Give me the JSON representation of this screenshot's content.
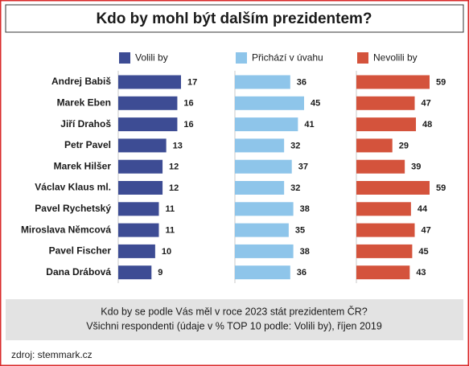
{
  "chart_data": {
    "type": "bar",
    "title": "Kdo by mohl být dalším prezidentem?",
    "categories": [
      "Andrej Babiš",
      "Marek Eben",
      "Jiří Drahoš",
      "Petr Pavel",
      "Marek Hilšer",
      "Václav Klaus ml.",
      "Pavel Rychetský",
      "Miroslava Němcová",
      "Pavel Fischer",
      "Dana Drábová"
    ],
    "series": [
      {
        "name": "Volili by",
        "color": "#3d4c94",
        "values": [
          17,
          16,
          16,
          13,
          12,
          12,
          11,
          11,
          10,
          9
        ]
      },
      {
        "name": "Přichází v úvahu",
        "color": "#8ec5ea",
        "values": [
          36,
          45,
          41,
          32,
          37,
          32,
          38,
          35,
          38,
          36
        ]
      },
      {
        "name": "Nevolili by",
        "color": "#d4533c",
        "values": [
          59,
          47,
          48,
          29,
          39,
          59,
          44,
          47,
          45,
          43
        ]
      }
    ],
    "notes": [
      "Kdo by se podle Vás měl v roce 2023 stát prezidentem ČR?",
      "Všichni respondenti (údaje v % TOP 10 podle: Volili by), říjen 2019"
    ],
    "source": "zdroj: stemmark.cz"
  }
}
